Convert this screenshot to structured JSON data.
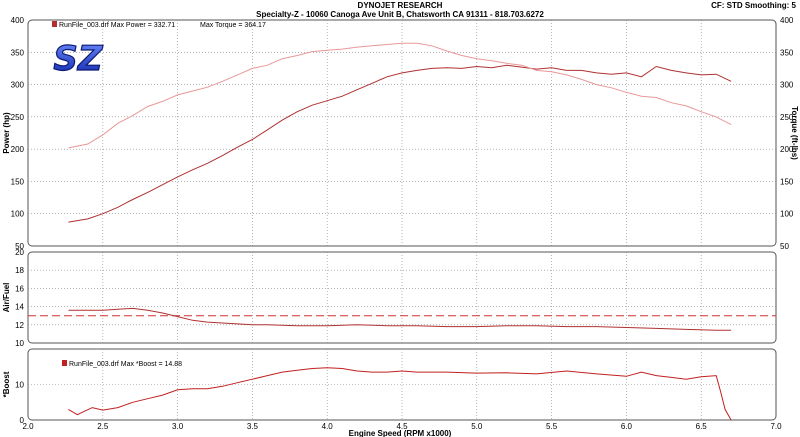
{
  "header": {
    "title": "DYNOJET RESEARCH",
    "subtitle": "Specialty-Z - 10060 Canoga Ave Unit B, Chatsworth CA 91311 - 818.703.6272",
    "settings": "CF: STD  Smoothing: 5"
  },
  "logo": {
    "text": "SZ",
    "color": "#1a3fd6"
  },
  "colors": {
    "background": "#ffffff",
    "panel_border": "#555555",
    "power": "#b03030",
    "torque": "#e89898",
    "afr": "#b03030",
    "afr_ref": "#d03030",
    "boost": "#c02020"
  },
  "chart_data": [
    {
      "type": "line",
      "panel": "top",
      "legend": {
        "power_label": "RunFile_003.drf Max Power = 332.71",
        "torque_label": "Max Torque = 364.17"
      },
      "ylabel": "Power (hp)",
      "ylabel_right": "Torque (ft-lbs)",
      "ylim": [
        50,
        400
      ],
      "yticks": [
        50,
        100,
        150,
        200,
        250,
        300,
        350,
        400
      ],
      "series": [
        {
          "key": "power",
          "x": [
            2.27,
            2.4,
            2.5,
            2.6,
            2.7,
            2.8,
            2.9,
            3.0,
            3.1,
            3.2,
            3.3,
            3.4,
            3.5,
            3.6,
            3.7,
            3.8,
            3.9,
            4.0,
            4.1,
            4.2,
            4.3,
            4.4,
            4.5,
            4.6,
            4.7,
            4.8,
            4.9,
            5.0,
            5.1,
            5.2,
            5.3,
            5.4,
            5.5,
            5.6,
            5.7,
            5.8,
            5.9,
            6.0,
            6.1,
            6.2,
            6.3,
            6.4,
            6.5,
            6.6,
            6.7
          ],
          "values": [
            87,
            92,
            100,
            110,
            122,
            133,
            145,
            157,
            168,
            178,
            190,
            203,
            215,
            230,
            245,
            258,
            268,
            275,
            282,
            292,
            302,
            312,
            318,
            322,
            325,
            326,
            325,
            328,
            326,
            330,
            327,
            324,
            326,
            322,
            322,
            318,
            316,
            318,
            312,
            328,
            322,
            318,
            315,
            316,
            305
          ]
        },
        {
          "key": "torque",
          "x": [
            2.27,
            2.4,
            2.5,
            2.6,
            2.7,
            2.8,
            2.9,
            3.0,
            3.1,
            3.2,
            3.3,
            3.4,
            3.5,
            3.6,
            3.7,
            3.8,
            3.9,
            4.0,
            4.1,
            4.2,
            4.3,
            4.4,
            4.5,
            4.6,
            4.7,
            4.8,
            4.9,
            5.0,
            5.1,
            5.2,
            5.3,
            5.4,
            5.5,
            5.6,
            5.7,
            5.8,
            5.9,
            6.0,
            6.1,
            6.2,
            6.3,
            6.4,
            6.5,
            6.6,
            6.7
          ],
          "values": [
            202,
            208,
            222,
            240,
            252,
            266,
            274,
            284,
            290,
            296,
            305,
            315,
            325,
            330,
            340,
            345,
            351,
            353,
            355,
            358,
            360,
            362,
            364,
            364,
            360,
            352,
            345,
            340,
            337,
            333,
            330,
            322,
            320,
            315,
            308,
            300,
            295,
            288,
            282,
            280,
            272,
            267,
            258,
            250,
            238
          ]
        }
      ]
    },
    {
      "type": "line",
      "panel": "middle",
      "ylabel": "Air/Fuel",
      "ylim": [
        10,
        20
      ],
      "yticks": [
        10,
        12,
        14,
        16,
        18,
        20
      ],
      "reference_line": 13,
      "series": [
        {
          "key": "afr",
          "x": [
            2.27,
            2.4,
            2.5,
            2.6,
            2.7,
            2.8,
            2.9,
            3.0,
            3.1,
            3.2,
            3.3,
            3.4,
            3.5,
            3.6,
            3.8,
            4.0,
            4.2,
            4.4,
            4.6,
            4.8,
            5.0,
            5.2,
            5.4,
            5.6,
            5.8,
            6.0,
            6.2,
            6.4,
            6.6,
            6.7
          ],
          "values": [
            13.6,
            13.6,
            13.6,
            13.7,
            13.8,
            13.6,
            13.3,
            12.9,
            12.5,
            12.3,
            12.2,
            12.1,
            12.0,
            12.0,
            11.9,
            11.9,
            12.0,
            11.9,
            11.9,
            11.8,
            11.8,
            11.9,
            11.9,
            11.8,
            11.8,
            11.7,
            11.6,
            11.5,
            11.4,
            11.4
          ]
        }
      ]
    },
    {
      "type": "line",
      "panel": "bottom",
      "legend": {
        "boost_label": "RunFile_003.drf Max *Boost = 14.88"
      },
      "ylabel": "*Boost",
      "xlabel": "Engine Speed (RPM x1000)",
      "ylim": [
        0,
        20
      ],
      "yticks": [
        0,
        10
      ],
      "xlim": [
        2.0,
        7.0
      ],
      "xticks": [
        "2.0",
        "2.5",
        "3.0",
        "3.5",
        "4.0",
        "4.5",
        "5.0",
        "5.5",
        "6.0",
        "6.5",
        "7.0"
      ],
      "series": [
        {
          "key": "boost",
          "x": [
            2.27,
            2.33,
            2.38,
            2.43,
            2.5,
            2.6,
            2.7,
            2.8,
            2.9,
            3.0,
            3.1,
            3.2,
            3.3,
            3.4,
            3.5,
            3.6,
            3.7,
            3.8,
            3.9,
            4.0,
            4.1,
            4.2,
            4.3,
            4.4,
            4.5,
            4.6,
            4.8,
            5.0,
            5.2,
            5.4,
            5.6,
            5.8,
            6.0,
            6.1,
            6.2,
            6.3,
            6.4,
            6.5,
            6.6,
            6.63,
            6.66,
            6.7
          ],
          "values": [
            3.0,
            1.5,
            2.5,
            3.5,
            2.8,
            3.5,
            5.0,
            6.0,
            7.0,
            8.5,
            8.8,
            8.8,
            9.5,
            10.5,
            11.5,
            12.5,
            13.5,
            14.0,
            14.5,
            14.7,
            14.5,
            13.8,
            13.5,
            13.5,
            13.8,
            13.5,
            13.5,
            13.2,
            13.3,
            13.0,
            13.8,
            13.0,
            12.3,
            13.5,
            12.5,
            12.0,
            11.5,
            12.2,
            12.5,
            8.0,
            3.0,
            0.0
          ]
        }
      ]
    }
  ]
}
